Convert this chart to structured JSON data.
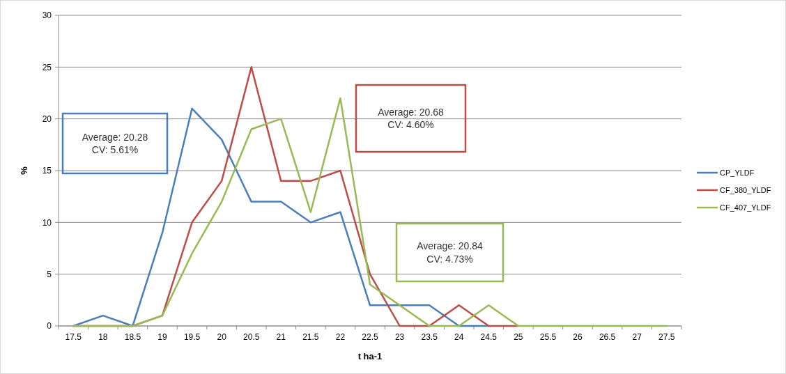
{
  "chart_data": {
    "type": "line",
    "xlabel": "t ha-1",
    "ylabel": "%",
    "categories": [
      "17.5",
      "18",
      "18.5",
      "19",
      "19.5",
      "20",
      "20.5",
      "21",
      "21.5",
      "22",
      "22.5",
      "23",
      "23.5",
      "24",
      "24.5",
      "25",
      "25.5",
      "26",
      "26.5",
      "27",
      "27.5"
    ],
    "series": [
      {
        "name": "CP_YLDF",
        "color": "#4a7ebb",
        "values": [
          0,
          1,
          0,
          9,
          21,
          18,
          12,
          12,
          10,
          11,
          2,
          2,
          2,
          0,
          0,
          null,
          null,
          null,
          null,
          null,
          null
        ]
      },
      {
        "name": "CF_380_YLDF",
        "color": "#be4b48",
        "values": [
          0,
          0,
          0,
          1,
          10,
          14,
          25,
          14,
          14,
          15,
          5,
          0,
          0,
          2,
          0,
          0,
          null,
          null,
          null,
          null,
          null
        ]
      },
      {
        "name": "CF_407_YLDF",
        "color": "#98b954",
        "values": [
          0,
          0,
          0,
          1,
          7,
          12,
          19,
          20,
          11,
          22,
          4,
          2,
          0,
          0,
          2,
          0,
          0,
          0,
          0,
          0,
          0
        ]
      }
    ],
    "ylim": [
      0,
      30
    ],
    "yticks": [
      0,
      5,
      10,
      15,
      20,
      25,
      30
    ],
    "grid": "y",
    "legend": "right",
    "line_style": "solid",
    "marker": "none",
    "annotations": [
      "Average: 20.28\nCV: 5.61%",
      "Average: 20.68\nCV: 4.60%",
      "Average: 20.84\nCV: 4.73%"
    ]
  }
}
